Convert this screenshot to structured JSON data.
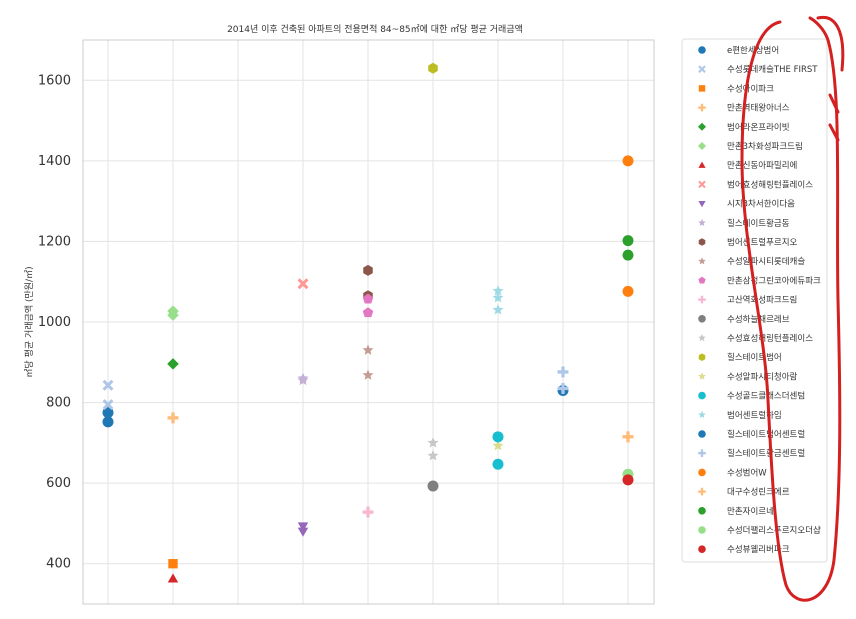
{
  "chart_data": {
    "type": "scatter",
    "title": "2014년 이후 건축된 아파트의 전용면적 84~85㎡에 대한 ㎡당 평균 거래금액",
    "xlabel": "",
    "ylabel": "㎡당 평균 거래금액 (만원/㎡)",
    "ylim": [
      300,
      1700
    ],
    "yticks": [
      400,
      600,
      800,
      1000,
      1200,
      1400,
      1600
    ],
    "x_categories": 9,
    "grid": true,
    "legend_position": "right",
    "series": [
      {
        "name": "e편한세상범어",
        "marker": "circle",
        "color": "#1f77b4",
        "points": [
          {
            "x": 0,
            "y": 752
          },
          {
            "x": 0,
            "y": 775
          }
        ]
      },
      {
        "name": "수성롯데캐슬THE FIRST",
        "marker": "x",
        "color": "#aec7e8",
        "points": [
          {
            "x": 0,
            "y": 843
          },
          {
            "x": 0,
            "y": 795
          }
        ]
      },
      {
        "name": "수성아이파크",
        "marker": "square",
        "color": "#ff7f0e",
        "points": [
          {
            "x": 1,
            "y": 400
          }
        ]
      },
      {
        "name": "만촌역태왕아너스",
        "marker": "plus",
        "color": "#ffbb78",
        "points": [
          {
            "x": 1,
            "y": 762
          }
        ]
      },
      {
        "name": "범어라온프라이빗",
        "marker": "diamond",
        "color": "#2ca02c",
        "points": [
          {
            "x": 1,
            "y": 896
          }
        ]
      },
      {
        "name": "만촌3차화성파크드림",
        "marker": "diamond",
        "color": "#98df8a",
        "points": [
          {
            "x": 1,
            "y": 1027
          },
          {
            "x": 1,
            "y": 1017
          }
        ]
      },
      {
        "name": "만촌신동아파밀리에",
        "marker": "triangle-up",
        "color": "#d62728",
        "points": [
          {
            "x": 1,
            "y": 363
          }
        ]
      },
      {
        "name": "범어효성해링턴플레이스",
        "marker": "x",
        "color": "#ff9896",
        "points": [
          {
            "x": 3,
            "y": 1095
          }
        ]
      },
      {
        "name": "시지3차서한이다음",
        "marker": "triangle-down",
        "color": "#9467bd",
        "points": [
          {
            "x": 3,
            "y": 493
          },
          {
            "x": 3,
            "y": 480
          }
        ]
      },
      {
        "name": "힐스테이트황금동",
        "marker": "star",
        "color": "#c5b0d5",
        "points": [
          {
            "x": 3,
            "y": 855
          },
          {
            "x": 3,
            "y": 860
          }
        ]
      },
      {
        "name": "범어센트럴푸르지오",
        "marker": "hexagon",
        "color": "#8c564b",
        "points": [
          {
            "x": 4,
            "y": 1128
          },
          {
            "x": 4,
            "y": 1065
          }
        ]
      },
      {
        "name": "수성알파시티롯데캐슬",
        "marker": "star",
        "color": "#c49c94",
        "points": [
          {
            "x": 4,
            "y": 930
          },
          {
            "x": 4,
            "y": 868
          }
        ]
      },
      {
        "name": "만촌삼정그린코아에듀파크",
        "marker": "pentagon",
        "color": "#e377c2",
        "points": [
          {
            "x": 4,
            "y": 1057
          },
          {
            "x": 4,
            "y": 1023
          }
        ]
      },
      {
        "name": "고산역화성파크드림",
        "marker": "plus",
        "color": "#f7b6d2",
        "points": [
          {
            "x": 4,
            "y": 528
          }
        ]
      },
      {
        "name": "수성하늘채르레브",
        "marker": "circle",
        "color": "#7f7f7f",
        "points": [
          {
            "x": 5,
            "y": 593
          }
        ]
      },
      {
        "name": "수성효성해링턴플레이스",
        "marker": "star",
        "color": "#c7c7c7",
        "points": [
          {
            "x": 5,
            "y": 700
          },
          {
            "x": 5,
            "y": 668
          }
        ]
      },
      {
        "name": "힐스테이트범어",
        "marker": "hexagon",
        "color": "#bcbd22",
        "points": [
          {
            "x": 5,
            "y": 1630
          }
        ]
      },
      {
        "name": "수성알파시티청아람",
        "marker": "star",
        "color": "#dbdb8d",
        "points": [
          {
            "x": 6,
            "y": 693
          }
        ]
      },
      {
        "name": "수성골드클래스더센텀",
        "marker": "circle",
        "color": "#17becf",
        "points": [
          {
            "x": 6,
            "y": 715
          },
          {
            "x": 6,
            "y": 647
          }
        ]
      },
      {
        "name": "범어센트럴하임",
        "marker": "star",
        "color": "#9edae5",
        "points": [
          {
            "x": 6,
            "y": 1077
          },
          {
            "x": 6,
            "y": 1060
          },
          {
            "x": 6,
            "y": 1030
          }
        ]
      },
      {
        "name": "힐스테이트범어센트럴",
        "marker": "circle",
        "color": "#1f77b4",
        "points": [
          {
            "x": 7,
            "y": 830
          }
        ]
      },
      {
        "name": "힐스테이트황금센트럴",
        "marker": "plus",
        "color": "#aec7e8",
        "points": [
          {
            "x": 7,
            "y": 876
          },
          {
            "x": 7,
            "y": 835
          }
        ]
      },
      {
        "name": "수성범어W",
        "marker": "circle",
        "color": "#ff7f0e",
        "points": [
          {
            "x": 8,
            "y": 1400
          },
          {
            "x": 8,
            "y": 1076
          }
        ]
      },
      {
        "name": "대구수성린크에르",
        "marker": "plus",
        "color": "#ffbb78",
        "points": [
          {
            "x": 8,
            "y": 715
          }
        ]
      },
      {
        "name": "만촌자이르네",
        "marker": "circle",
        "color": "#2ca02c",
        "points": [
          {
            "x": 8,
            "y": 1202
          },
          {
            "x": 8,
            "y": 1166
          }
        ]
      },
      {
        "name": "수성더팰리스푸르지오더샵",
        "marker": "circle",
        "color": "#98df8a",
        "points": [
          {
            "x": 8,
            "y": 622
          }
        ]
      },
      {
        "name": "수성뷰웰리버파크",
        "marker": "circle",
        "color": "#d62728",
        "points": [
          {
            "x": 8,
            "y": 608
          }
        ]
      }
    ]
  }
}
